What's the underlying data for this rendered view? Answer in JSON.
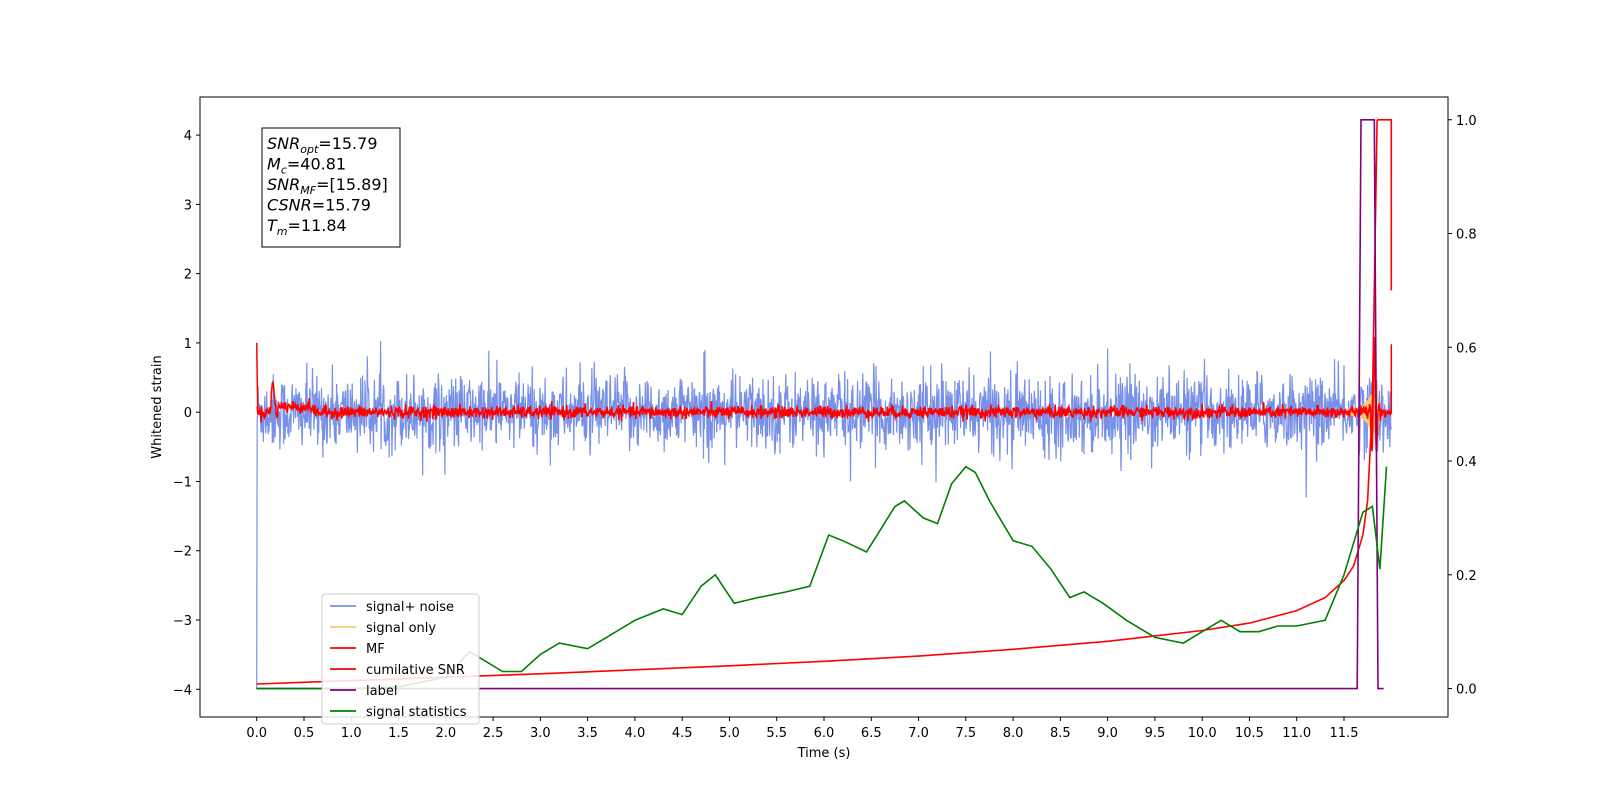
{
  "chart_data": {
    "type": "line",
    "xlabel": "Time (s)",
    "ylabel": "Whitened strain",
    "xlim": [
      -0.6,
      12.6
    ],
    "ylim": [
      -4.4,
      4.55
    ],
    "y2lim": [
      -0.05,
      1.04
    ],
    "x_ticks": [
      "0.0",
      "0.5",
      "1.0",
      "1.5",
      "2.0",
      "2.5",
      "3.0",
      "3.5",
      "4.0",
      "4.5",
      "5.0",
      "5.5",
      "6.0",
      "6.5",
      "7.0",
      "7.5",
      "8.0",
      "8.5",
      "9.0",
      "9.5",
      "10.0",
      "10.5",
      "11.0",
      "11.5"
    ],
    "y_ticks": [
      "4",
      "3",
      "2",
      "1",
      "0",
      "−1",
      "−2",
      "−3",
      "−4"
    ],
    "y2_ticks": [
      "1.0",
      "0.8",
      "0.6",
      "0.4",
      "0.2",
      "0.0"
    ],
    "grid": false,
    "legend_position": "lower-left",
    "annotations": [
      {
        "sym": "SNR",
        "sub": "opt",
        "rest": "=15.79"
      },
      {
        "sym": "M",
        "sub": "c",
        "rest": "=40.81"
      },
      {
        "sym": "SNR",
        "sub": "MF",
        "rest": "=[15.89]"
      },
      {
        "sym": "CSNR",
        "sub": "",
        "rest": "=15.79"
      },
      {
        "sym": "T",
        "sub": "m",
        "rest": "=11.84"
      }
    ],
    "series": [
      {
        "name": "signal+ noise",
        "color": "#7890e8",
        "axis": "left",
        "description": "whitened noise, spread approx ±0.7 around 0 from 0.0 to 12.0 s, initial drop to −4 at t=0"
      },
      {
        "name": "signal only",
        "color": "#f5c878",
        "axis": "left",
        "description": "chirp waveform near merger around 11.7–11.9 s"
      },
      {
        "name": "MF",
        "color": "#ff0000",
        "axis": "left",
        "description": "matched filter output near 0, spike to 1 at start and near 11.8 s"
      },
      {
        "name": "cumilative SNR",
        "color": "#ff0000",
        "axis": "right",
        "x": [
          0.0,
          1.0,
          2.0,
          3.0,
          4.0,
          5.0,
          6.0,
          7.0,
          8.0,
          9.0,
          10.0,
          10.5,
          11.0,
          11.3,
          11.5,
          11.6,
          11.7,
          11.75,
          11.8,
          11.85
        ],
        "y": [
          0.008,
          0.014,
          0.02,
          0.026,
          0.033,
          0.04,
          0.048,
          0.057,
          0.069,
          0.083,
          0.102,
          0.115,
          0.137,
          0.16,
          0.19,
          0.215,
          0.27,
          0.33,
          0.5,
          1.0
        ]
      },
      {
        "name": "label",
        "color": "#800080",
        "axis": "right",
        "x": [
          0.0,
          11.64,
          11.68,
          11.82,
          11.86,
          11.92
        ],
        "y": [
          0.0,
          0.0,
          1.0,
          1.0,
          0.0,
          0.0
        ]
      },
      {
        "name": "signal statistics",
        "color": "#008000",
        "axis": "right",
        "x": [
          0.0,
          1.0,
          1.5,
          2.0,
          2.25,
          2.4,
          2.6,
          2.8,
          3.0,
          3.2,
          3.5,
          3.7,
          4.0,
          4.3,
          4.5,
          4.7,
          4.85,
          5.05,
          5.3,
          5.6,
          5.85,
          6.05,
          6.2,
          6.45,
          6.6,
          6.75,
          6.85,
          7.05,
          7.2,
          7.35,
          7.5,
          7.6,
          7.75,
          8.0,
          8.2,
          8.4,
          8.6,
          8.75,
          8.95,
          9.2,
          9.5,
          9.8,
          10.0,
          10.2,
          10.4,
          10.6,
          10.8,
          11.0,
          11.3,
          11.5,
          11.7,
          11.8,
          11.88,
          11.95
        ],
        "y": [
          0.0,
          0.0,
          0.003,
          0.02,
          0.065,
          0.05,
          0.03,
          0.03,
          0.06,
          0.08,
          0.07,
          0.09,
          0.12,
          0.14,
          0.13,
          0.18,
          0.2,
          0.15,
          0.16,
          0.17,
          0.18,
          0.27,
          0.26,
          0.24,
          0.28,
          0.32,
          0.33,
          0.3,
          0.29,
          0.36,
          0.39,
          0.38,
          0.33,
          0.26,
          0.25,
          0.21,
          0.16,
          0.17,
          0.15,
          0.12,
          0.09,
          0.08,
          0.1,
          0.12,
          0.1,
          0.1,
          0.11,
          0.11,
          0.12,
          0.2,
          0.31,
          0.32,
          0.21,
          0.39
        ]
      }
    ]
  }
}
